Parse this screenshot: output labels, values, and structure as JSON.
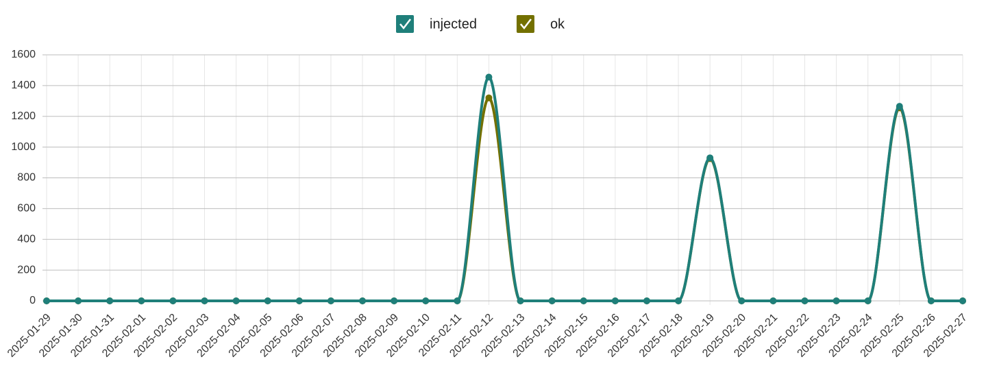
{
  "chart_data": {
    "type": "line",
    "x": [
      "2025-01-29",
      "2025-01-30",
      "2025-01-31",
      "2025-02-01",
      "2025-02-02",
      "2025-02-03",
      "2025-02-04",
      "2025-02-05",
      "2025-02-06",
      "2025-02-07",
      "2025-02-08",
      "2025-02-09",
      "2025-02-10",
      "2025-02-11",
      "2025-02-12",
      "2025-02-13",
      "2025-02-14",
      "2025-02-15",
      "2025-02-16",
      "2025-02-17",
      "2025-02-18",
      "2025-02-19",
      "2025-02-20",
      "2025-02-21",
      "2025-02-22",
      "2025-02-23",
      "2025-02-24",
      "2025-02-25",
      "2025-02-26",
      "2025-02-27"
    ],
    "series": [
      {
        "name": "injected",
        "color": "#1f7f7a",
        "values": [
          0,
          0,
          0,
          0,
          0,
          0,
          0,
          0,
          0,
          0,
          0,
          0,
          0,
          0,
          1455,
          0,
          0,
          0,
          0,
          0,
          0,
          930,
          0,
          0,
          0,
          0,
          0,
          1265,
          0,
          0
        ]
      },
      {
        "name": "ok",
        "color": "#737000",
        "values": [
          0,
          0,
          0,
          0,
          0,
          0,
          0,
          0,
          0,
          0,
          0,
          0,
          0,
          0,
          1320,
          0,
          0,
          0,
          0,
          0,
          0,
          925,
          0,
          0,
          0,
          0,
          0,
          1255,
          0,
          0
        ]
      }
    ],
    "ylim": [
      0,
      1600
    ],
    "yticks": [
      0,
      200,
      400,
      600,
      800,
      1000,
      1200,
      1400,
      1600
    ],
    "grid": true
  }
}
